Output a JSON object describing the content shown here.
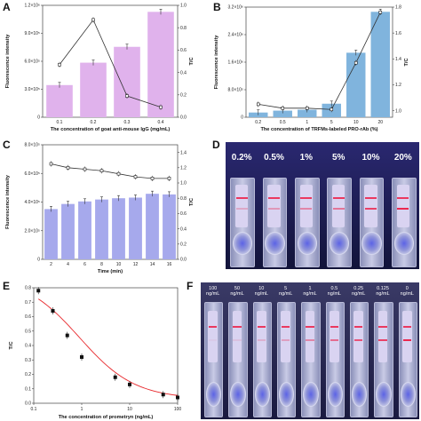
{
  "chart_data": [
    {
      "panel": "A",
      "type": "bar",
      "xlabel": "The concentration of goat anti-mouse IgG (mg/mL)",
      "ylabel": "Fluorescence intensity",
      "y2label": "T/C",
      "categories": [
        "0.1",
        "0.2",
        "0.3",
        "0.4"
      ],
      "ylim": [
        0,
        1200000
      ],
      "y_ticks": [
        "0",
        "3.0×10⁵",
        "6.0×10⁵",
        "9.0×10⁵",
        "1.2×10⁶"
      ],
      "y2lim": [
        0,
        1.0
      ],
      "y2_ticks": [
        "0.0",
        "0.2",
        "0.4",
        "0.6",
        "0.8",
        "1.0"
      ],
      "bar_values": [
        345000,
        585000,
        755000,
        1130000
      ],
      "line_values": [
        0.47,
        0.87,
        0.19,
        0.09
      ],
      "bar_color": "#e0b2ec",
      "grid": false
    },
    {
      "panel": "B",
      "type": "bar",
      "xlabel": "The concentration of TRFMs-labeled PRO-rAb (%)",
      "ylabel": "Fluorescence intensity",
      "y2label": "T/C",
      "categories": [
        "0.2",
        "0.5",
        "1",
        "5",
        "10",
        "20"
      ],
      "ylim": [
        0,
        3500000
      ],
      "y_ticks": [
        "0",
        "8.0×10⁵",
        "1.6×10⁶",
        "2.4×10⁶",
        "3.2×10⁶"
      ],
      "y2lim": [
        0.95,
        1.8
      ],
      "y2_ticks": [
        "1.0",
        "1.2",
        "1.4",
        "1.6",
        "1.8"
      ],
      "bar_values": [
        150000,
        210000,
        240000,
        430000,
        2050000,
        3350000
      ],
      "line_values": [
        1.05,
        1.02,
        1.02,
        1.01,
        1.37,
        1.76
      ],
      "bar_color": "#80b4dd",
      "grid": false
    },
    {
      "panel": "C",
      "type": "bar",
      "xlabel": "Time (min)",
      "ylabel": "Fluorescence intensity",
      "y2label": "T/C",
      "categories": [
        "2",
        "4",
        "6",
        "8",
        "10",
        "12",
        "14",
        "16"
      ],
      "ylim": [
        0,
        900000
      ],
      "y_ticks": [
        "0",
        "2.0×10⁵",
        "4.0×10⁵",
        "6.0×10⁵",
        "8.0×10⁵"
      ],
      "y2lim": [
        0,
        1.5
      ],
      "y2_ticks": [
        "0.0",
        "0.2",
        "0.4",
        "0.6",
        "0.8",
        "1.0",
        "1.2",
        "1.4"
      ],
      "bar_values": [
        395000,
        435000,
        455000,
        470000,
        480000,
        485000,
        515000,
        510000
      ],
      "line_values": [
        1.25,
        1.2,
        1.18,
        1.16,
        1.12,
        1.08,
        1.06,
        1.06
      ],
      "bar_color": "#a6a9ec",
      "grid": false
    },
    {
      "panel": "E",
      "type": "scatter",
      "xlabel": "The concentration of prometryn (ng/mL)",
      "ylabel": "T/C",
      "xscale": "log",
      "xlim": [
        0.1,
        100
      ],
      "x_ticks": [
        "0.1",
        "1",
        "10",
        "100"
      ],
      "ylim": [
        0,
        0.8
      ],
      "y_ticks": [
        "0.0",
        "0.1",
        "0.2",
        "0.3",
        "0.4",
        "0.5",
        "0.6",
        "0.7",
        "0.8"
      ],
      "x": [
        0.125,
        0.25,
        0.5,
        1,
        5,
        10,
        50,
        100
      ],
      "y": [
        0.78,
        0.64,
        0.47,
        0.32,
        0.18,
        0.13,
        0.06,
        0.04
      ],
      "fit_color": "#e8262a",
      "grid": false
    }
  ],
  "photos": {
    "D": {
      "label": "D",
      "labels": [
        "0.2%",
        "0.5%",
        "1%",
        "5%",
        "10%",
        "20%"
      ],
      "test_line_intensity": [
        0.25,
        0.35,
        0.45,
        0.55,
        0.85,
        1.0
      ]
    },
    "F": {
      "label": "F",
      "labels": [
        "100\nng/mL",
        "50\nng/mL",
        "10\nng/mL",
        "5\nng/mL",
        "1\nng/mL",
        "0.5\nng/mL",
        "0.25\nng/mL",
        "0.125\nng/mL",
        "0\nng/mL"
      ],
      "test_line_intensity": [
        0.05,
        0.1,
        0.2,
        0.3,
        0.45,
        0.6,
        0.75,
        0.85,
        1.0
      ]
    }
  },
  "panel_labels": [
    "A",
    "B",
    "C",
    "D",
    "E",
    "F"
  ]
}
